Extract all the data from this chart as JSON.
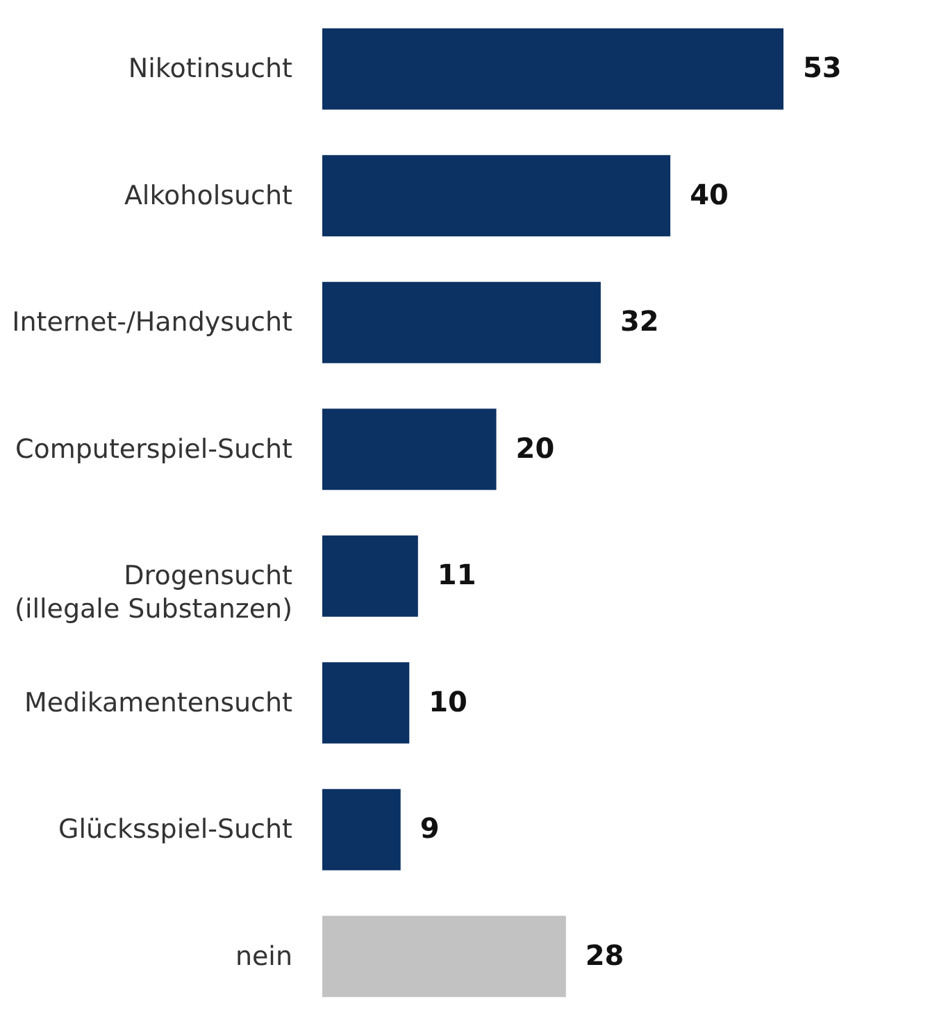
{
  "chart_data": {
    "type": "bar",
    "orientation": "horizontal",
    "categories": [
      "Nikotinsucht",
      "Alkoholsucht",
      "Internet-/Handysucht",
      "Computerspiel-Sucht",
      "Drogensucht\n(illegale Substanzen)",
      "Medikamentensucht",
      "Glücksspiel-Sucht",
      "nein"
    ],
    "values": [
      53,
      40,
      32,
      20,
      11,
      10,
      9,
      28
    ],
    "colors": [
      "#0c3263",
      "#0c3263",
      "#0c3263",
      "#0c3263",
      "#0c3263",
      "#0c3263",
      "#0c3263",
      "#c2c2c2"
    ],
    "data_labels": true,
    "tick_labels": "y"
  }
}
